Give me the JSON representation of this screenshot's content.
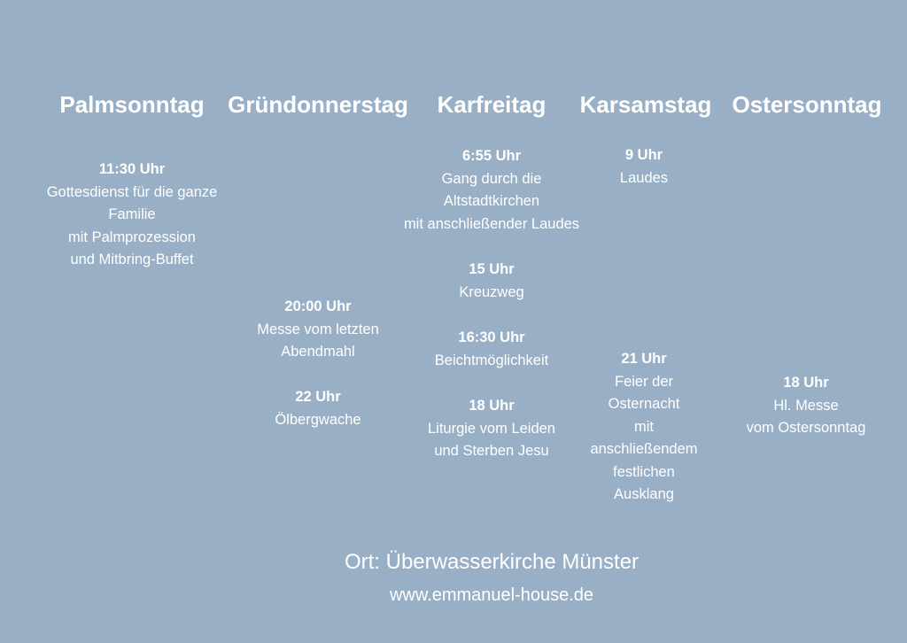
{
  "days": [
    {
      "name": "Palmsonntag",
      "events": [
        {
          "time": "11:30 Uhr",
          "lines": [
            "Gottesdienst für die ganze",
            "Familie",
            "mit Palmprozession",
            "und Mitbring-Buffet"
          ]
        }
      ]
    },
    {
      "name": "Gründonnerstag",
      "events": [
        {
          "time": "20:00 Uhr",
          "lines": [
            "Messe vom letzten",
            "Abendmahl"
          ]
        },
        {
          "time": "22 Uhr",
          "lines": [
            "Ölbergwache"
          ]
        }
      ]
    },
    {
      "name": "Karfreitag",
      "events": [
        {
          "time": "6:55 Uhr",
          "lines": [
            "Gang durch die",
            "Altstadtkirchen",
            "mit anschließender Laudes"
          ]
        },
        {
          "time": "15 Uhr",
          "lines": [
            "Kreuzweg"
          ]
        },
        {
          "time": "16:30 Uhr",
          "lines": [
            "Beichtmöglichkeit"
          ]
        },
        {
          "time": "18 Uhr",
          "lines": [
            "Liturgie vom Leiden",
            "und Sterben Jesu"
          ]
        }
      ]
    },
    {
      "name": "Karsamstag",
      "events": [
        {
          "time": "9 Uhr",
          "lines": [
            "Laudes"
          ]
        },
        {
          "time": "21 Uhr",
          "lines": [
            "Feier der",
            "Osternacht",
            "mit",
            "anschließendem",
            "festlichen",
            "Ausklang"
          ]
        }
      ]
    },
    {
      "name": "Ostersonntag",
      "events": [
        {
          "time": "18 Uhr",
          "lines": [
            "Hl. Messe",
            "vom Ostersonntag"
          ]
        }
      ]
    }
  ],
  "footer": {
    "location": "Ort: Überwasserkirche Münster",
    "website": "www.emmanuel-house.de"
  },
  "colors": {
    "background": "#99afc6",
    "text": "#ffffff"
  }
}
